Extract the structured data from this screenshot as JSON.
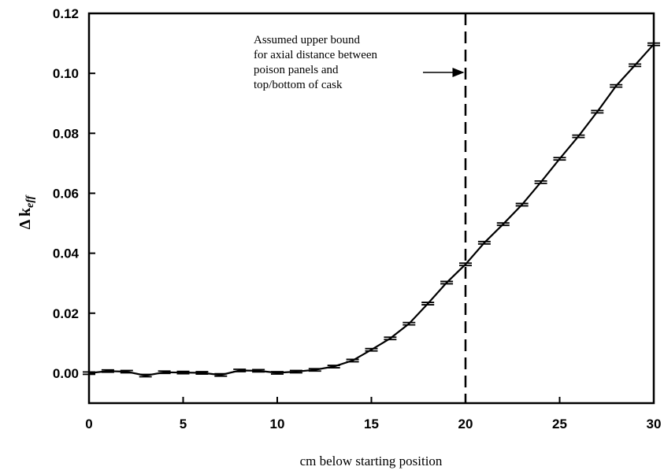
{
  "chart_data": {
    "type": "line",
    "xlabel": "cm below starting position",
    "ylabel": "Δ k",
    "ylabel_sub": "eff",
    "xlim": [
      0,
      30
    ],
    "ylim": [
      -0.01,
      0.12
    ],
    "x_ticks": [
      "0",
      "5",
      "10",
      "15",
      "20",
      "25",
      "30"
    ],
    "y_ticks": [
      "0.00",
      "0.02",
      "0.04",
      "0.06",
      "0.08",
      "0.10",
      "0.12"
    ],
    "grid": false,
    "series": [
      {
        "x": [
          0,
          1,
          2,
          3,
          4,
          5,
          6,
          7,
          8,
          9,
          10,
          11,
          12,
          13,
          14,
          15,
          16,
          17,
          18,
          19,
          20,
          21,
          22,
          23,
          24,
          25,
          26,
          27,
          28,
          29,
          30
        ],
        "values": [
          0.0,
          0.0007,
          0.0005,
          -0.0008,
          0.0003,
          0.0002,
          0.0001,
          -0.0006,
          0.0009,
          0.0008,
          0.0001,
          0.0005,
          0.0011,
          0.0022,
          0.0042,
          0.0078,
          0.0116,
          0.0165,
          0.0232,
          0.0302,
          0.0363,
          0.0435,
          0.0497,
          0.0562,
          0.0637,
          0.0715,
          0.079,
          0.0872,
          0.0958,
          0.1027,
          0.1097
        ],
        "error_bars": true
      }
    ],
    "vline": {
      "x": 20,
      "style": "dashed",
      "annotation": [
        "Assumed upper bound",
        "for axial distance between",
        "poison panels and",
        "top/bottom of cask"
      ]
    }
  }
}
